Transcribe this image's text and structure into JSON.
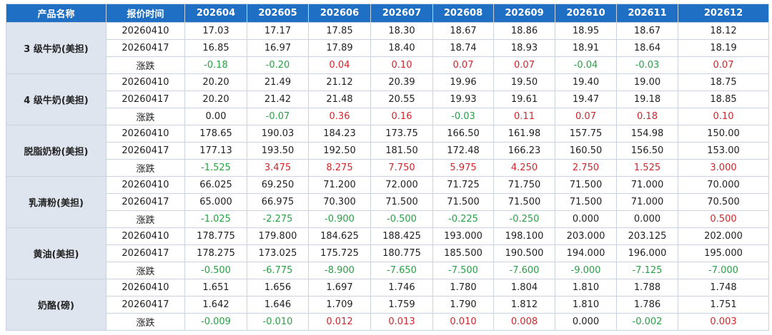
{
  "header": [
    "产品名称",
    "报价时间",
    "202604",
    "202605",
    "202606",
    "202607",
    "202608",
    "202609",
    "202610",
    "202611",
    "202612"
  ],
  "groups": [
    {
      "name": "3 级牛奶(美担)",
      "rows": [
        {
          "label": "20260410",
          "values": [
            "17.03",
            "17.17",
            "17.85",
            "18.30",
            "18.67",
            "18.86",
            "18.95",
            "18.67",
            "18.12"
          ]
        },
        {
          "label": "20260417",
          "values": [
            "16.85",
            "16.97",
            "17.89",
            "18.40",
            "18.74",
            "18.93",
            "18.91",
            "18.64",
            "18.19"
          ]
        },
        {
          "label": "涨跌",
          "values": [
            "-0.18",
            "-0.20",
            "0.04",
            "0.10",
            "0.07",
            "0.07",
            "-0.04",
            "-0.03",
            "0.07"
          ]
        }
      ]
    },
    {
      "name": "4 级牛奶(美担)",
      "rows": [
        {
          "label": "20260410",
          "values": [
            "20.20",
            "21.49",
            "21.12",
            "20.39",
            "19.96",
            "19.50",
            "19.40",
            "19.00",
            "18.75"
          ]
        },
        {
          "label": "20260417",
          "values": [
            "20.20",
            "21.42",
            "21.48",
            "20.55",
            "19.93",
            "19.61",
            "19.47",
            "19.18",
            "18.85"
          ]
        },
        {
          "label": "涨跌",
          "values": [
            "0.00",
            "-0.07",
            "0.36",
            "0.16",
            "-0.03",
            "0.11",
            "0.07",
            "0.18",
            "0.10"
          ]
        }
      ]
    },
    {
      "name": "脱脂奶粉(美担)",
      "rows": [
        {
          "label": "20260410",
          "values": [
            "178.65",
            "190.03",
            "184.23",
            "173.75",
            "166.50",
            "161.98",
            "157.75",
            "154.98",
            "150.00"
          ]
        },
        {
          "label": "20260417",
          "values": [
            "177.13",
            "193.50",
            "192.50",
            "181.50",
            "172.48",
            "166.23",
            "160.50",
            "156.50",
            "153.00"
          ]
        },
        {
          "label": "涨跌",
          "values": [
            "-1.525",
            "3.475",
            "8.275",
            "7.750",
            "5.975",
            "4.250",
            "2.750",
            "1.525",
            "3.000"
          ]
        }
      ]
    },
    {
      "name": "乳清粉(美担)",
      "rows": [
        {
          "label": "20260410",
          "values": [
            "66.025",
            "69.250",
            "71.200",
            "72.000",
            "71.725",
            "71.750",
            "71.500",
            "71.000",
            "70.000"
          ]
        },
        {
          "label": "20260417",
          "values": [
            "65.000",
            "66.975",
            "70.300",
            "71.500",
            "71.500",
            "71.500",
            "71.500",
            "71.000",
            "70.500"
          ]
        },
        {
          "label": "涨跌",
          "values": [
            "-1.025",
            "-2.275",
            "-0.900",
            "-0.500",
            "-0.225",
            "-0.250",
            "0.000",
            "0.000",
            "0.500"
          ]
        }
      ]
    },
    {
      "name": "黄油(美担)",
      "rows": [
        {
          "label": "20260410",
          "values": [
            "178.775",
            "179.800",
            "184.625",
            "188.425",
            "193.000",
            "198.100",
            "203.000",
            "203.125",
            "202.000"
          ]
        },
        {
          "label": "20260417",
          "values": [
            "178.275",
            "173.025",
            "175.725",
            "180.775",
            "185.500",
            "190.500",
            "194.000",
            "196.000",
            "195.000"
          ]
        },
        {
          "label": "涨跌",
          "values": [
            "-0.500",
            "-6.775",
            "-8.900",
            "-7.650",
            "-7.500",
            "-7.600",
            "-9.000",
            "-7.125",
            "-7.000"
          ]
        }
      ]
    },
    {
      "name": "奶酪(磅)",
      "rows": [
        {
          "label": "20260410",
          "values": [
            "1.651",
            "1.656",
            "1.697",
            "1.746",
            "1.780",
            "1.804",
            "1.810",
            "1.788",
            "1.748"
          ]
        },
        {
          "label": "20260417",
          "values": [
            "1.642",
            "1.646",
            "1.709",
            "1.759",
            "1.790",
            "1.812",
            "1.810",
            "1.786",
            "1.751"
          ]
        },
        {
          "label": "涨跌",
          "values": [
            "-0.009",
            "-0.010",
            "0.012",
            "0.013",
            "0.010",
            "0.008",
            "0.000",
            "-0.002",
            "0.003"
          ]
        }
      ]
    }
  ]
}
